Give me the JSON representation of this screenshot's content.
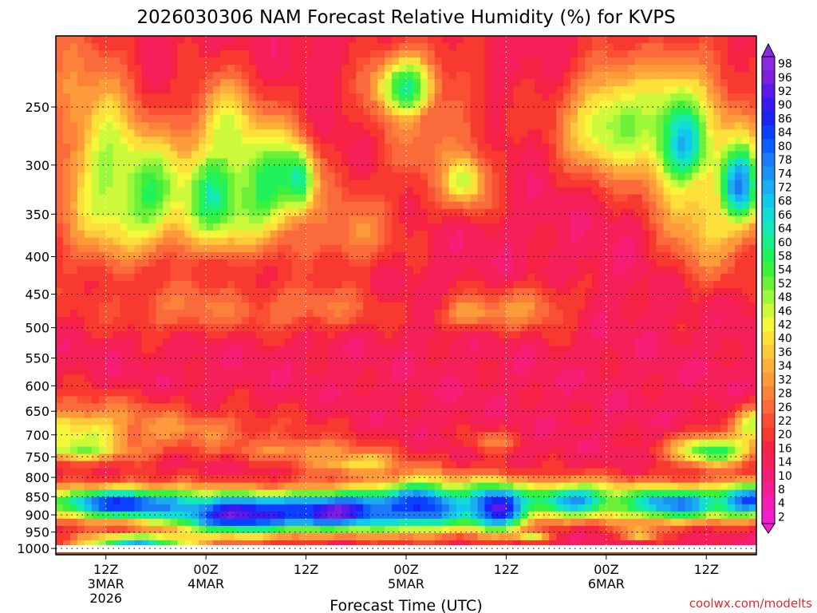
{
  "chart_data": {
    "type": "heatmap",
    "title": "2026030306 NAM Forecast Relative Humidity (%) for KVPS",
    "xlabel": "Forecast Time (UTC)",
    "ylabel": "",
    "credit": "coolwx.com/modelts",
    "y_axis": {
      "scale": "pressure",
      "reversed": true,
      "range": [
        1020,
        200
      ],
      "ticks": [
        250,
        300,
        350,
        400,
        450,
        500,
        550,
        600,
        650,
        700,
        750,
        800,
        850,
        900,
        950,
        1000
      ]
    },
    "x_axis": {
      "unit": "hours since 2026-03-03 06Z",
      "range": [
        0,
        84
      ],
      "ticks": [
        {
          "x": 6,
          "lines": [
            "12Z",
            "3MAR",
            "2026"
          ]
        },
        {
          "x": 18,
          "lines": [
            "00Z",
            "4MAR"
          ]
        },
        {
          "x": 30,
          "lines": [
            "12Z"
          ]
        },
        {
          "x": 42,
          "lines": [
            "00Z",
            "5MAR"
          ]
        },
        {
          "x": 54,
          "lines": [
            "12Z"
          ]
        },
        {
          "x": 66,
          "lines": [
            "00Z",
            "6MAR"
          ]
        },
        {
          "x": 78,
          "lines": [
            "12Z"
          ]
        }
      ]
    },
    "grid": true,
    "colorbar": {
      "placement": "right",
      "labels": [
        "98",
        "96",
        "92",
        "90",
        "86",
        "84",
        "80",
        "78",
        "74",
        "72",
        "68",
        "66",
        "64",
        "60",
        "58",
        "54",
        "52",
        "48",
        "46",
        "42",
        "40",
        "36",
        "34",
        "32",
        "28",
        "26",
        "22",
        "20",
        "16",
        "14",
        "10",
        "8",
        "4",
        "2"
      ],
      "colors": [
        "#8a2be2",
        "#7a1fe0",
        "#5a1ae8",
        "#3a1af0",
        "#1a22f8",
        "#0a40ff",
        "#0a60ff",
        "#1a7af8",
        "#1a94f4",
        "#1aaef0",
        "#12c8ee",
        "#12dcd8",
        "#14e8b4",
        "#18ef88",
        "#22f25a",
        "#3cf03c",
        "#6cf03a",
        "#9cf83a",
        "#ccfa3a",
        "#f4f73a",
        "#fde13a",
        "#fdc83a",
        "#fdb13a",
        "#fd9a3a",
        "#fc823a",
        "#fb6a3a",
        "#fa4f33",
        "#f7392f",
        "#f52244",
        "#f5205a",
        "#f51e74",
        "#f41e90",
        "#f31eb2",
        "#f21ed2"
      ],
      "extend": "both"
    },
    "surface_band": {
      "pressure_top": 1012,
      "color": "#a0522d"
    },
    "base_rh": 12,
    "features": [
      {
        "x": 2,
        "p": 280,
        "rh": 24,
        "sx": 5,
        "sp": 160
      },
      {
        "x": 6,
        "p": 310,
        "rh": 44,
        "sx": 4,
        "sp": 80
      },
      {
        "x": 11,
        "p": 330,
        "rh": 54,
        "sx": 5,
        "sp": 60
      },
      {
        "x": 19,
        "p": 330,
        "rh": 58,
        "sx": 4,
        "sp": 60
      },
      {
        "x": 20,
        "p": 270,
        "rh": 40,
        "sx": 3,
        "sp": 40
      },
      {
        "x": 25,
        "p": 320,
        "rh": 56,
        "sx": 5,
        "sp": 60
      },
      {
        "x": 29,
        "p": 315,
        "rh": 62,
        "sx": 2,
        "sp": 30
      },
      {
        "x": 35,
        "p": 370,
        "rh": 28,
        "sx": 6,
        "sp": 50
      },
      {
        "x": 42,
        "p": 235,
        "rh": 58,
        "sx": 4,
        "sp": 25
      },
      {
        "x": 49,
        "p": 315,
        "rh": 44,
        "sx": 3,
        "sp": 30
      },
      {
        "x": 45,
        "p": 275,
        "rh": 26,
        "sx": 7,
        "sp": 60
      },
      {
        "x": 67,
        "p": 265,
        "rh": 50,
        "sx": 6,
        "sp": 45
      },
      {
        "x": 75,
        "p": 280,
        "rh": 66,
        "sx": 4,
        "sp": 55
      },
      {
        "x": 82,
        "p": 320,
        "rh": 72,
        "sx": 3,
        "sp": 50
      },
      {
        "x": 78,
        "p": 330,
        "rh": 40,
        "sx": 5,
        "sp": 90
      },
      {
        "x": 16,
        "p": 470,
        "rh": 26,
        "sx": 10,
        "sp": 40
      },
      {
        "x": 31,
        "p": 470,
        "rh": 26,
        "sx": 8,
        "sp": 35
      },
      {
        "x": 50,
        "p": 478,
        "rh": 32,
        "sx": 4,
        "sp": 25
      },
      {
        "x": 57,
        "p": 470,
        "rh": 28,
        "sx": 5,
        "sp": 35
      },
      {
        "x": 3,
        "p": 695,
        "rh": 42,
        "sx": 8,
        "sp": 60
      },
      {
        "x": 2,
        "p": 735,
        "rh": 48,
        "sx": 5,
        "sp": 20
      },
      {
        "x": 12,
        "p": 690,
        "rh": 28,
        "sx": 16,
        "sp": 50
      },
      {
        "x": 30,
        "p": 735,
        "rh": 30,
        "sx": 8,
        "sp": 30
      },
      {
        "x": 36,
        "p": 765,
        "rh": 40,
        "sx": 5,
        "sp": 25
      },
      {
        "x": 52,
        "p": 715,
        "rh": 26,
        "sx": 3,
        "sp": 25
      },
      {
        "x": 79,
        "p": 735,
        "rh": 58,
        "sx": 5,
        "sp": 35
      },
      {
        "x": 84,
        "p": 680,
        "rh": 44,
        "sx": 3,
        "sp": 40
      },
      {
        "x": 8,
        "p": 870,
        "rh": 84,
        "sx": 10,
        "sp": 45
      },
      {
        "x": 22,
        "p": 900,
        "rh": 94,
        "sx": 8,
        "sp": 55
      },
      {
        "x": 34,
        "p": 890,
        "rh": 94,
        "sx": 9,
        "sp": 55
      },
      {
        "x": 44,
        "p": 875,
        "rh": 84,
        "sx": 6,
        "sp": 70
      },
      {
        "x": 53,
        "p": 880,
        "rh": 94,
        "sx": 4,
        "sp": 65
      },
      {
        "x": 62,
        "p": 860,
        "rh": 72,
        "sx": 6,
        "sp": 50
      },
      {
        "x": 74,
        "p": 870,
        "rh": 76,
        "sx": 7,
        "sp": 50
      },
      {
        "x": 83,
        "p": 860,
        "rh": 82,
        "sx": 4,
        "sp": 45
      },
      {
        "x": 10,
        "p": 985,
        "rh": 66,
        "sx": 7,
        "sp": 30
      },
      {
        "x": 57,
        "p": 960,
        "rh": 44,
        "sx": 2,
        "sp": 15
      },
      {
        "x": 70,
        "p": 955,
        "rh": 40,
        "sx": 2,
        "sp": 20
      }
    ]
  }
}
